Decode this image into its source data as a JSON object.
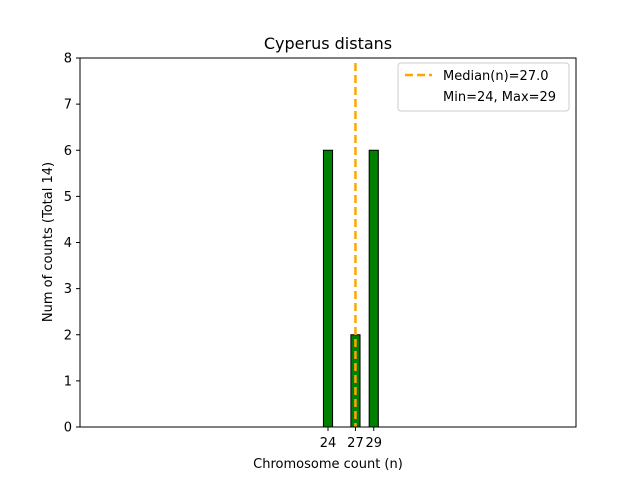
{
  "chart_data": {
    "type": "bar",
    "title": "Cyperus distans",
    "xlabel": "Chromosome count (n)",
    "ylabel": "Num of counts     (Total 14)",
    "x": [
      24,
      27,
      29
    ],
    "values": [
      6,
      2,
      6
    ],
    "xticks": [
      "24",
      "27",
      "29"
    ],
    "yticks": [
      "0",
      "1",
      "2",
      "3",
      "4",
      "5",
      "6",
      "7",
      "8"
    ],
    "xlim": [
      -3.1,
      51.1
    ],
    "ylim": [
      0,
      8
    ],
    "grid": false,
    "median": 27.0,
    "legend": {
      "placement": "top-right",
      "entries": [
        "Median(n)=27.0",
        "Min=24, Max=29"
      ]
    },
    "colors": {
      "bar_fill": "#008000",
      "bar_edge": "#000000",
      "median_line": "#FFA500",
      "axes": "#000000"
    }
  }
}
